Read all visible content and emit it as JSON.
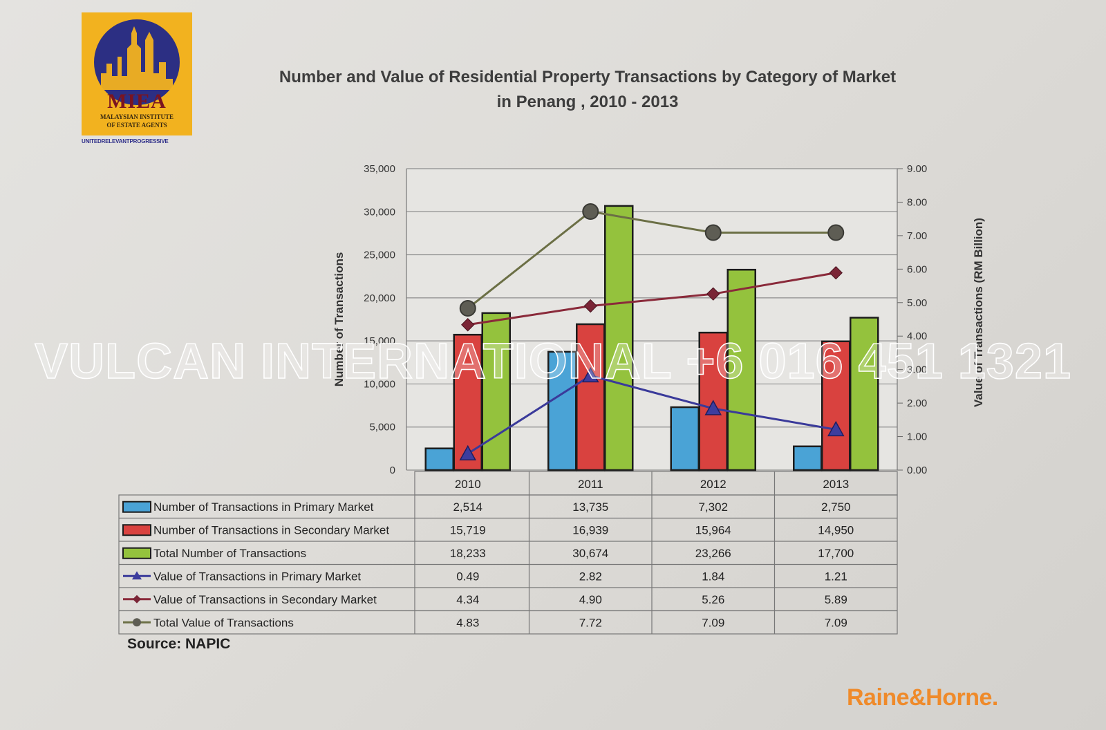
{
  "logo": {
    "brand": "MIEA",
    "line1": "MALAYSIAN INSTITUTE",
    "line2": "OF ESTATE AGENTS",
    "tagline": "UNITEDRELEVANTPROGRESSIVE"
  },
  "watermark": "VULCAN INTERNATIONAL +6 016 451 1321",
  "source": "Source: NAPIC",
  "footer_brand": "Raine&Horne.",
  "chart_data": {
    "type": "bar",
    "title": "Number and Value of Residential Property Transactions by Category of Market",
    "subtitle": "in Penang , 2010 - 2013",
    "categories": [
      "2010",
      "2011",
      "2012",
      "2013"
    ],
    "ylabel": "Number of Transactions",
    "ylabel_right": "Value of Transactions (RM Billion)",
    "ylim": [
      0,
      35000
    ],
    "ylim_right": [
      0,
      9
    ],
    "yticks": [
      "0",
      "5,000",
      "10,000",
      "15,000",
      "20,000",
      "25,000",
      "30,000",
      "35,000"
    ],
    "yticks_right": [
      "0.00",
      "1.00",
      "2.00",
      "3.00",
      "4.00",
      "5.00",
      "6.00",
      "7.00",
      "8.00",
      "9.00"
    ],
    "grid": true,
    "legend": "table-below",
    "series": [
      {
        "name": "Number of Transactions in Primary Market",
        "type": "bar",
        "axis": "left",
        "color": "#4aa3d6",
        "values": [
          2514,
          13735,
          7302,
          2750
        ],
        "labels": [
          "2,514",
          "13,735",
          "7,302",
          "2,750"
        ]
      },
      {
        "name": "Number of Transactions in Secondary Market",
        "type": "bar",
        "axis": "left",
        "color": "#d9423f",
        "values": [
          15719,
          16939,
          15964,
          14950
        ],
        "labels": [
          "15,719",
          "16,939",
          "15,964",
          "14,950"
        ]
      },
      {
        "name": "Total Number of Transactions",
        "type": "bar",
        "axis": "left",
        "color": "#94c23d",
        "values": [
          18233,
          30674,
          23266,
          17700
        ],
        "labels": [
          "18,233",
          "30,674",
          "23,266",
          "17,700"
        ]
      },
      {
        "name": "Value of Transactions in Primary Market",
        "type": "line",
        "axis": "right",
        "marker": "triangle",
        "color": "#3a3a9a",
        "values": [
          0.49,
          2.82,
          1.84,
          1.21
        ],
        "labels": [
          "0.49",
          "2.82",
          "1.84",
          "1.21"
        ]
      },
      {
        "name": "Value of Transactions in Secondary Market",
        "type": "line",
        "axis": "right",
        "marker": "diamond",
        "color": "#8a2a3a",
        "values": [
          4.34,
          4.9,
          5.26,
          5.89
        ],
        "labels": [
          "4.34",
          "4.90",
          "5.26",
          "5.89"
        ]
      },
      {
        "name": "Total Value of Transactions",
        "type": "line",
        "axis": "right",
        "marker": "circle",
        "color": "#6b6f45",
        "values": [
          4.83,
          7.72,
          7.09,
          7.09
        ],
        "labels": [
          "4.83",
          "7.72",
          "7.09",
          "7.09"
        ]
      }
    ]
  }
}
